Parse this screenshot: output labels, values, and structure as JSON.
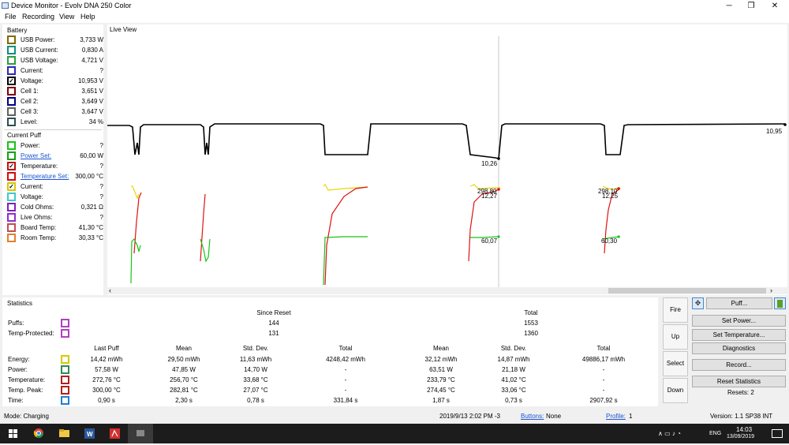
{
  "window": {
    "title": "Device Monitor - Evolv DNA 250 Color",
    "minimize": "─",
    "restore": "❐",
    "close": "✕"
  },
  "menu": [
    "File",
    "Recording",
    "View",
    "Help"
  ],
  "battery": {
    "header": "Battery",
    "rows": [
      {
        "label": "USB Power:",
        "value": "3,733 W",
        "color": "#7f6a00",
        "checked": false,
        "link": false
      },
      {
        "label": "USB Current:",
        "value": "0,830 A",
        "color": "#0f8f7f",
        "checked": false,
        "link": false
      },
      {
        "label": "USB Voltage:",
        "value": "4,721 V",
        "color": "#2e9e3e",
        "checked": false,
        "link": false
      },
      {
        "label": "Current:",
        "value": "?",
        "color": "#2a2ab8",
        "checked": false,
        "link": false
      },
      {
        "label": "Voltage:",
        "value": "10,953 V",
        "color": "#000000",
        "checked": true,
        "link": false
      },
      {
        "label": "Cell 1:",
        "value": "3,651 V",
        "color": "#7a0000",
        "checked": false,
        "link": false
      },
      {
        "label": "Cell 2:",
        "value": "3,649 V",
        "color": "#000080",
        "checked": false,
        "link": false
      },
      {
        "label": "Cell 3:",
        "value": "3,647 V",
        "color": "#606060",
        "checked": false,
        "link": false
      },
      {
        "label": "Level:",
        "value": "34 %",
        "color": "#2f4f4f",
        "checked": false,
        "link": false
      }
    ]
  },
  "current_puff": {
    "header": "Current Puff",
    "rows": [
      {
        "label": "Power:",
        "value": "?",
        "color": "#18c418",
        "checked": false,
        "link": false
      },
      {
        "label": "Power Set:",
        "value": "60,00 W",
        "color": "#18a018",
        "checked": false,
        "link": true
      },
      {
        "label": "Temperature:",
        "value": "?",
        "color": "#c01010",
        "checked": true,
        "link": false
      },
      {
        "label": "Temperature Set:",
        "value": "300,00 °C",
        "color": "#d01010",
        "checked": false,
        "link": true
      },
      {
        "label": "Current:",
        "value": "?",
        "color": "#d8c800",
        "checked": true,
        "link": false
      },
      {
        "label": "Voltage:",
        "value": "?",
        "color": "#40c8d0",
        "checked": false,
        "link": false
      },
      {
        "label": "Cold Ohms:",
        "value": "0,321 Ω",
        "color": "#8020c0",
        "checked": false,
        "link": false
      },
      {
        "label": "Live Ohms:",
        "value": "?",
        "color": "#9030c8",
        "checked": false,
        "link": false
      },
      {
        "label": "Board Temp:",
        "value": "41,30 °C",
        "color": "#c05050",
        "checked": false,
        "link": false
      },
      {
        "label": "Room Temp:",
        "value": "30,33 °C",
        "color": "#e08030",
        "checked": false,
        "link": false
      }
    ]
  },
  "live_view": {
    "header": "Live View",
    "labels": [
      "10,95",
      "10,26",
      "298,80",
      "12,27",
      "60,07",
      "298,10",
      "12,25",
      "60,30"
    ],
    "scroll_left": "‹",
    "scroll_right": "›"
  },
  "statistics": {
    "header": "Statistics",
    "since_reset_head": "Since Reset",
    "total_head": "Total",
    "counts": [
      {
        "label": "Puffs:",
        "since": "144",
        "total": "1553",
        "color": "#b040c0"
      },
      {
        "label": "Temp-Protected:",
        "since": "131",
        "total": "1360",
        "color": "#b040c0"
      }
    ],
    "columns": [
      "Last Puff",
      "Mean",
      "Std. Dev.",
      "Total",
      "Mean",
      "Std. Dev.",
      "Total"
    ],
    "rows": [
      {
        "label": "Energy:",
        "color": "#d8c800",
        "values": [
          "14,42 mWh",
          "29,50 mWh",
          "11,63 mWh",
          "4248,42 mWh",
          "32,12 mWh",
          "14,87 mWh",
          "49886,17 mWh"
        ]
      },
      {
        "label": "Power:",
        "color": "#2e8b57",
        "values": [
          "57,58 W",
          "47,85 W",
          "14,70 W",
          "-",
          "63,51 W",
          "21,18 W",
          "-"
        ]
      },
      {
        "label": "Temperature:",
        "color": "#b02020",
        "values": [
          "272,76 °C",
          "256,70 °C",
          "33,68 °C",
          "-",
          "233,79 °C",
          "41,02 °C",
          "-"
        ]
      },
      {
        "label": "Temp. Peak:",
        "color": "#b02020",
        "values": [
          "300,00 °C",
          "282,81 °C",
          "27,07 °C",
          "-",
          "274,45 °C",
          "33,06 °C",
          "-"
        ]
      },
      {
        "label": "Time:",
        "color": "#1e7fd8",
        "values": [
          "0,90 s",
          "2,30 s",
          "0,78 s",
          "331,84 s",
          "1,87 s",
          "0,73 s",
          "2907,92 s"
        ]
      }
    ]
  },
  "side_buttons": [
    "Fire",
    "Up",
    "Select",
    "Down"
  ],
  "right_buttons": {
    "puff": "Puff...",
    "set_power": "Set Power...",
    "set_temperature": "Set Temperature...",
    "diagnostics": "Diagnostics",
    "record": "Record...",
    "reset_statistics": "Reset Statistics",
    "resets": "Resets: 2"
  },
  "statusbar": {
    "mode": "Mode: Charging",
    "datetime": "2019/9/13 2:02 PM -3",
    "buttons_label": "Buttons:",
    "buttons_value": "None",
    "profile_label": "Profile:",
    "profile_value": "1",
    "version": "Version: 1.1 SP38 INT"
  },
  "taskbar": {
    "lang": "ENG",
    "time": "14:03",
    "date": "13/09/2019",
    "tray": "∧  ▭  ♪  ◔"
  }
}
